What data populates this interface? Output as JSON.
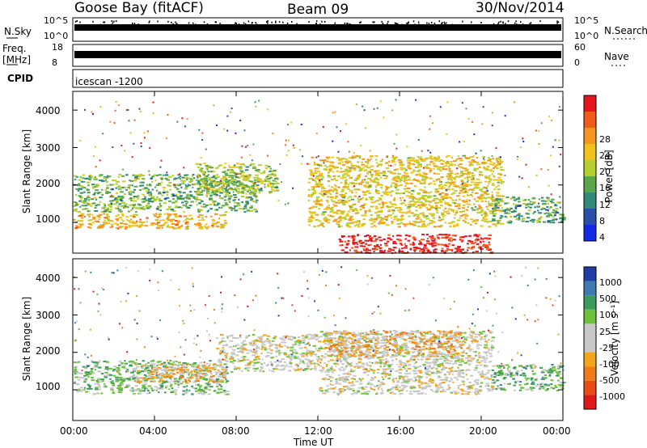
{
  "header": {
    "station": "Goose Bay (fitACF)",
    "beam": "Beam 09",
    "date": "30/Nov/2014"
  },
  "strips": {
    "nsky_label": "N.Sky",
    "nsky_ticks": [
      "10^5",
      "10^0"
    ],
    "nsearch_label": "N.Search",
    "nsearch_ticks": [
      "10^5",
      "10^0"
    ],
    "freq_label": "Freq.",
    "freq_unit": "[MHz]",
    "freq_ticks": [
      "18",
      "8"
    ],
    "nave_label": "Nave",
    "nave_ticks": [
      "60",
      "0"
    ],
    "cpid_label": "CPID",
    "cpid_value": "icescan -1200"
  },
  "axes": {
    "x_label": "Time UT",
    "x_ticks": [
      "00:00",
      "04:00",
      "08:00",
      "12:00",
      "16:00",
      "20:00",
      "00:00"
    ],
    "y_label": "Slant Range [km]",
    "y_ticks": [
      "1000",
      "2000",
      "3000",
      "4000"
    ]
  },
  "colorbars": {
    "power": {
      "label": "Power [dB]",
      "ticks": [
        "28",
        "24",
        "20",
        "16",
        "12",
        "8",
        "4"
      ],
      "colors": [
        "#e8141e",
        "#f25a1a",
        "#f7941d",
        "#f2c21b",
        "#b6cf2c",
        "#5aa64a",
        "#2f8a7a",
        "#2a4fa8",
        "#1428e6"
      ]
    },
    "velocity": {
      "label": "Velocity [m s⁻¹]",
      "ticks": [
        "1000",
        "500",
        "100",
        "25",
        "-25",
        "-100",
        "-500",
        "-1000"
      ],
      "colors": [
        "#1e3ca8",
        "#3f7ab0",
        "#3c9a5a",
        "#6cc23a",
        "#c8c8c8",
        "#c8c8c8",
        "#f2a51a",
        "#f07a18",
        "#ea4a14",
        "#e01818"
      ]
    }
  },
  "chart_data": [
    {
      "type": "heatmap",
      "name": "Power",
      "xlabel": "Time UT",
      "ylabel": "Slant Range [km]",
      "xlim": [
        "00:00",
        "24:00"
      ],
      "ylim": [
        180,
        4500
      ],
      "colorbar": "Power [dB]",
      "colorbar_range": [
        0,
        30
      ],
      "regions": [
        {
          "t": [
            0,
            7.5
          ],
          "range": [
            850,
            1250
          ],
          "value": 20
        },
        {
          "t": [
            0,
            9
          ],
          "range": [
            1300,
            2300
          ],
          "value": 12
        },
        {
          "t": [
            6,
            10
          ],
          "range": [
            1800,
            2600
          ],
          "value": 14
        },
        {
          "t": [
            11.5,
            21
          ],
          "range": [
            900,
            2800
          ],
          "value": 18
        },
        {
          "t": [
            13,
            20.5
          ],
          "range": [
            200,
            700
          ],
          "value": 30
        },
        {
          "t": [
            20.5,
            24
          ],
          "range": [
            1000,
            1700
          ],
          "value": 10
        }
      ]
    },
    {
      "type": "heatmap",
      "name": "Velocity",
      "xlabel": "Time UT",
      "ylabel": "Slant Range [km]",
      "xlim": [
        "00:00",
        "24:00"
      ],
      "ylim": [
        180,
        4500
      ],
      "colorbar": "Velocity [m s⁻¹]",
      "colorbar_range": [
        -1000,
        1000
      ],
      "regions": [
        {
          "t": [
            0,
            7.5
          ],
          "range": [
            900,
            1800
          ],
          "value": 300
        },
        {
          "t": [
            3,
            7.5
          ],
          "range": [
            1200,
            1700
          ],
          "value": -300
        },
        {
          "t": [
            7,
            12
          ],
          "range": [
            1500,
            2500
          ],
          "value": 0
        },
        {
          "t": [
            12,
            20.5
          ],
          "range": [
            900,
            2600
          ],
          "value": 0
        },
        {
          "t": [
            12.5,
            19
          ],
          "range": [
            1900,
            2600
          ],
          "value": -300
        },
        {
          "t": [
            20.5,
            24
          ],
          "range": [
            1000,
            1700
          ],
          "value": 400
        }
      ]
    }
  ]
}
